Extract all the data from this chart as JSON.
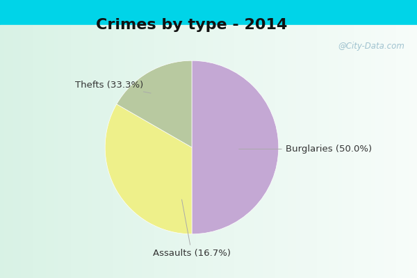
{
  "title": "Crimes by type - 2014",
  "labels": [
    "Burglaries (50.0%)",
    "Thefts (33.3%)",
    "Assaults (16.7%)"
  ],
  "values": [
    50.0,
    33.3,
    16.7
  ],
  "colors": [
    "#c4a8d4",
    "#eef08a",
    "#b8c9a0"
  ],
  "background_top": "#00d4e8",
  "background_main_tl": "#c8ede0",
  "background_main_br": "#e8f8f0",
  "title_fontsize": 16,
  "label_fontsize": 9.5,
  "startangle": 90,
  "watermark": "@City-Data.com"
}
